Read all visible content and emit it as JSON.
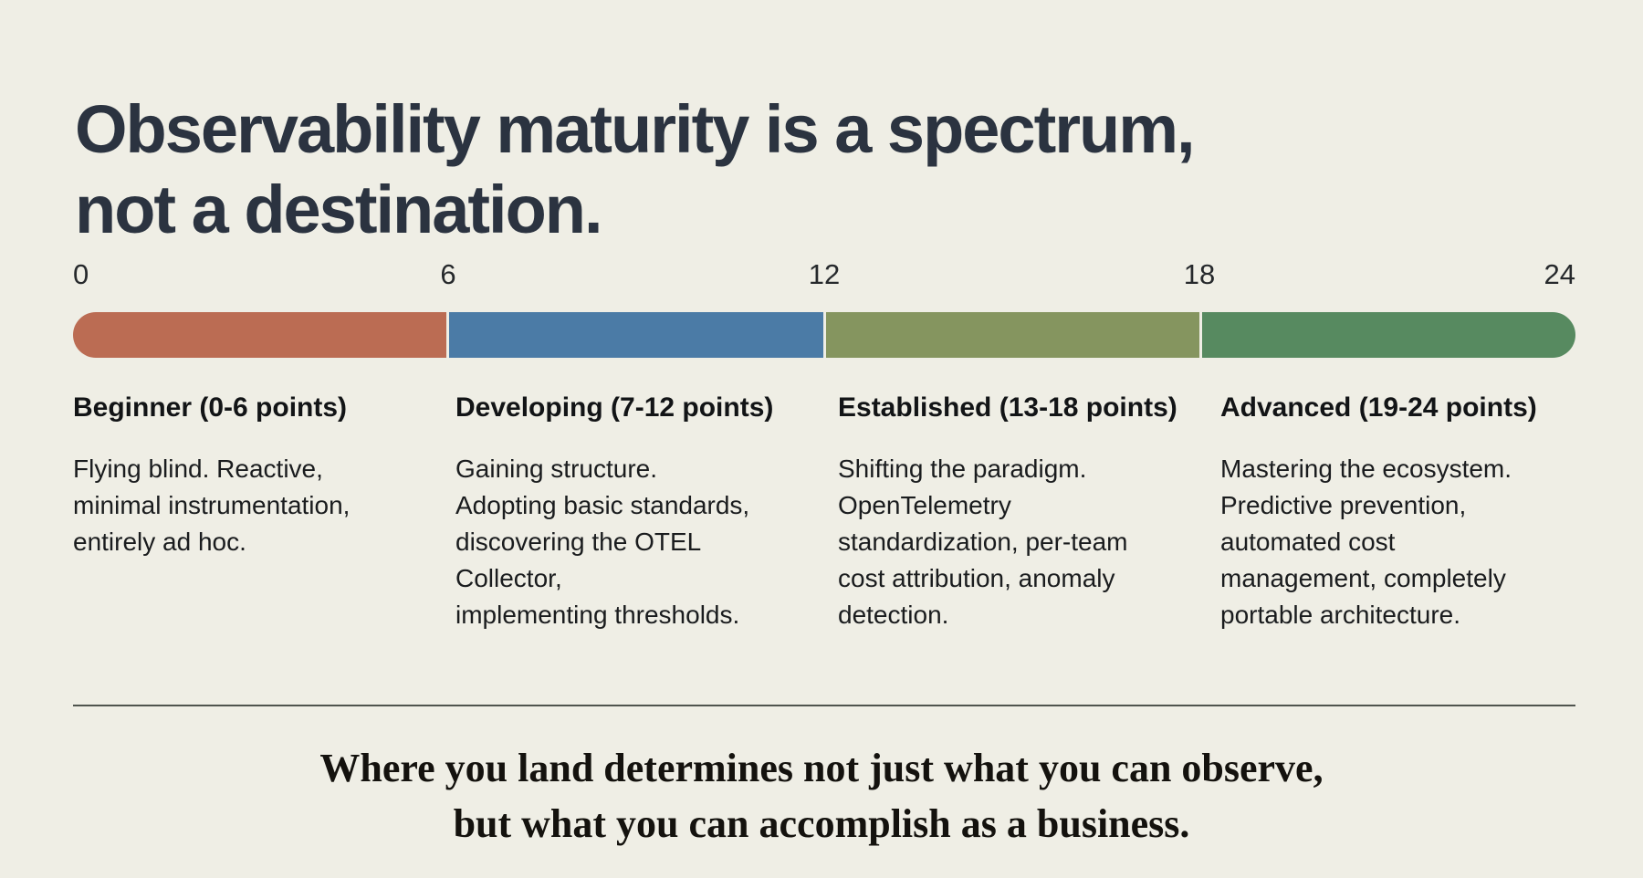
{
  "page": {
    "background_color": "#efeee5",
    "title_color": "#2b3340",
    "title_lines": [
      "Observability maturity is a spectrum,",
      "not a destination."
    ]
  },
  "scale": {
    "min": 0,
    "max": 24,
    "ticks": [
      "0",
      "6",
      "12",
      "18",
      "24"
    ]
  },
  "spectrum_bar": {
    "segments": [
      {
        "name": "beginner",
        "range": "0-6",
        "color": "#bb6c53"
      },
      {
        "name": "developing",
        "range": "7-12",
        "color": "#4b7ba6"
      },
      {
        "name": "established",
        "range": "13-18",
        "color": "#85955f"
      },
      {
        "name": "advanced",
        "range": "19-24",
        "color": "#578a60"
      }
    ]
  },
  "stages": [
    {
      "heading": "Beginner (0-6 points)",
      "description_lines": [
        "Flying blind. Reactive,",
        "minimal instrumentation,",
        "entirely ad hoc."
      ]
    },
    {
      "heading": "Developing (7-12 points)",
      "description_lines": [
        "Gaining structure.",
        "Adopting basic standards,",
        "discovering the OTEL",
        "Collector,",
        "implementing thresholds."
      ]
    },
    {
      "heading": "Established (13-18 points)",
      "description_lines": [
        "Shifting the paradigm.",
        "OpenTelemetry",
        "standardization, per-team",
        "cost attribution, anomaly",
        "detection."
      ]
    },
    {
      "heading": "Advanced (19-24 points)",
      "description_lines": [
        "Mastering the ecosystem.",
        "Predictive prevention,",
        "automated cost",
        "management, completely",
        "portable architecture."
      ]
    }
  ],
  "footer": {
    "divider_color": "#4f544e",
    "quote_lines": [
      "Where you land determines not just what you can observe,",
      "but what you can accomplish as a business."
    ]
  }
}
